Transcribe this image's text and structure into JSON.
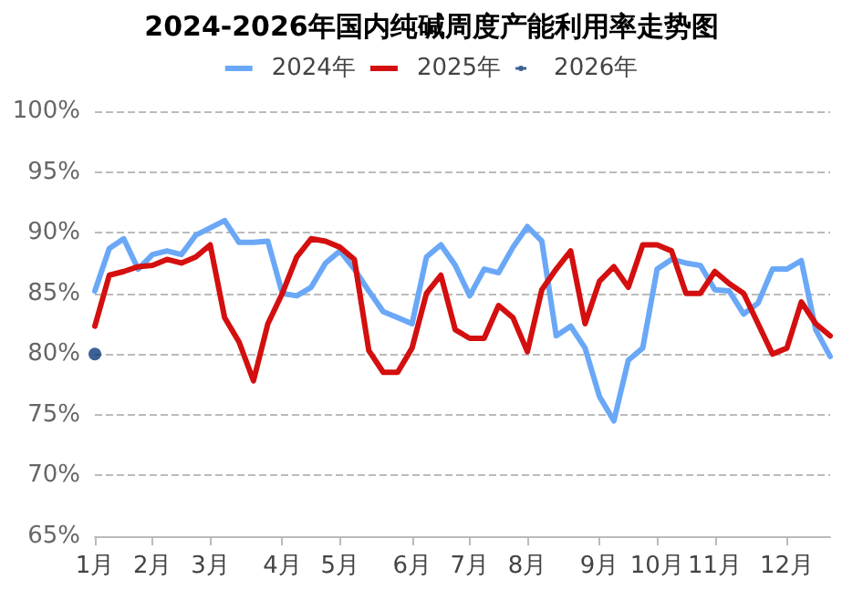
{
  "chart_data": {
    "type": "line",
    "title": "2024-2026年国内纯碱周度产能利用率走势图",
    "categories": [
      "1月",
      null,
      null,
      null,
      "2月",
      null,
      null,
      null,
      "3月",
      null,
      null,
      null,
      null,
      "4月",
      null,
      null,
      null,
      "5月",
      null,
      null,
      null,
      null,
      "6月",
      null,
      null,
      null,
      "7月",
      null,
      null,
      null,
      "8月",
      null,
      null,
      null,
      null,
      "9月",
      null,
      null,
      null,
      "10月",
      null,
      null,
      null,
      "11月",
      null,
      null,
      null,
      null,
      "12月",
      null,
      null,
      null
    ],
    "series": [
      {
        "name": "2024年",
        "color": "#6aa8f7",
        "values": [
          85.2,
          88.7,
          89.5,
          87.0,
          88.2,
          88.5,
          88.2,
          89.8,
          90.4,
          91.0,
          89.2,
          89.2,
          89.3,
          85.0,
          84.8,
          85.5,
          87.5,
          88.5,
          87.0,
          85.2,
          83.5,
          83.0,
          82.5,
          88.0,
          89.0,
          87.3,
          84.8,
          87.0,
          86.7,
          88.8,
          90.5,
          89.3,
          81.5,
          82.3,
          80.5,
          76.5,
          74.5,
          79.5,
          80.5,
          87.0,
          87.8,
          87.5,
          87.3,
          85.3,
          85.2,
          83.3,
          84.2,
          87.0,
          87.0,
          87.7,
          82.0,
          79.8
        ]
      },
      {
        "name": "2025年",
        "color": "#d40f0f",
        "values": [
          82.3,
          86.5,
          86.8,
          87.2,
          87.3,
          87.8,
          87.5,
          88.0,
          89.0,
          83.0,
          81.0,
          77.8,
          82.5,
          85.0,
          88.0,
          89.5,
          89.3,
          88.8,
          87.8,
          80.3,
          78.5,
          78.5,
          80.5,
          85.0,
          86.5,
          82.0,
          81.3,
          81.3,
          84.0,
          83.0,
          80.2,
          85.3,
          87.0,
          88.5,
          82.5,
          86.0,
          87.2,
          85.5,
          89.0,
          89.0,
          88.5,
          85.0,
          85.0,
          86.8,
          85.8,
          85.0,
          82.5,
          80.0,
          80.5,
          84.3,
          82.5,
          81.5
        ]
      },
      {
        "name": "2026年",
        "type": "scatter",
        "color": "#0e3a7a",
        "values": [
          80.0,
          null,
          null,
          null,
          null,
          null,
          null,
          null,
          null,
          null,
          null,
          null,
          null,
          null,
          null,
          null,
          null,
          null,
          null,
          null,
          null,
          null,
          null,
          null,
          null,
          null,
          null,
          null,
          null,
          null,
          null,
          null,
          null,
          null,
          null,
          null,
          null,
          null,
          null,
          null,
          null,
          null,
          null,
          null,
          null,
          null,
          null,
          null,
          null,
          null,
          null,
          null
        ]
      }
    ],
    "ylim": [
      65,
      100
    ],
    "yticks": [
      {
        "value": 65,
        "label": "65%"
      },
      {
        "value": 70,
        "label": "70%"
      },
      {
        "value": 75,
        "label": "75%"
      },
      {
        "value": 80,
        "label": "80%"
      },
      {
        "value": 85,
        "label": "85%"
      },
      {
        "value": 90,
        "label": "90%"
      },
      {
        "value": 95,
        "label": "95%"
      },
      {
        "value": 100,
        "label": "100%"
      }
    ],
    "grid": "y",
    "legend": "top",
    "line_style": "solid"
  }
}
